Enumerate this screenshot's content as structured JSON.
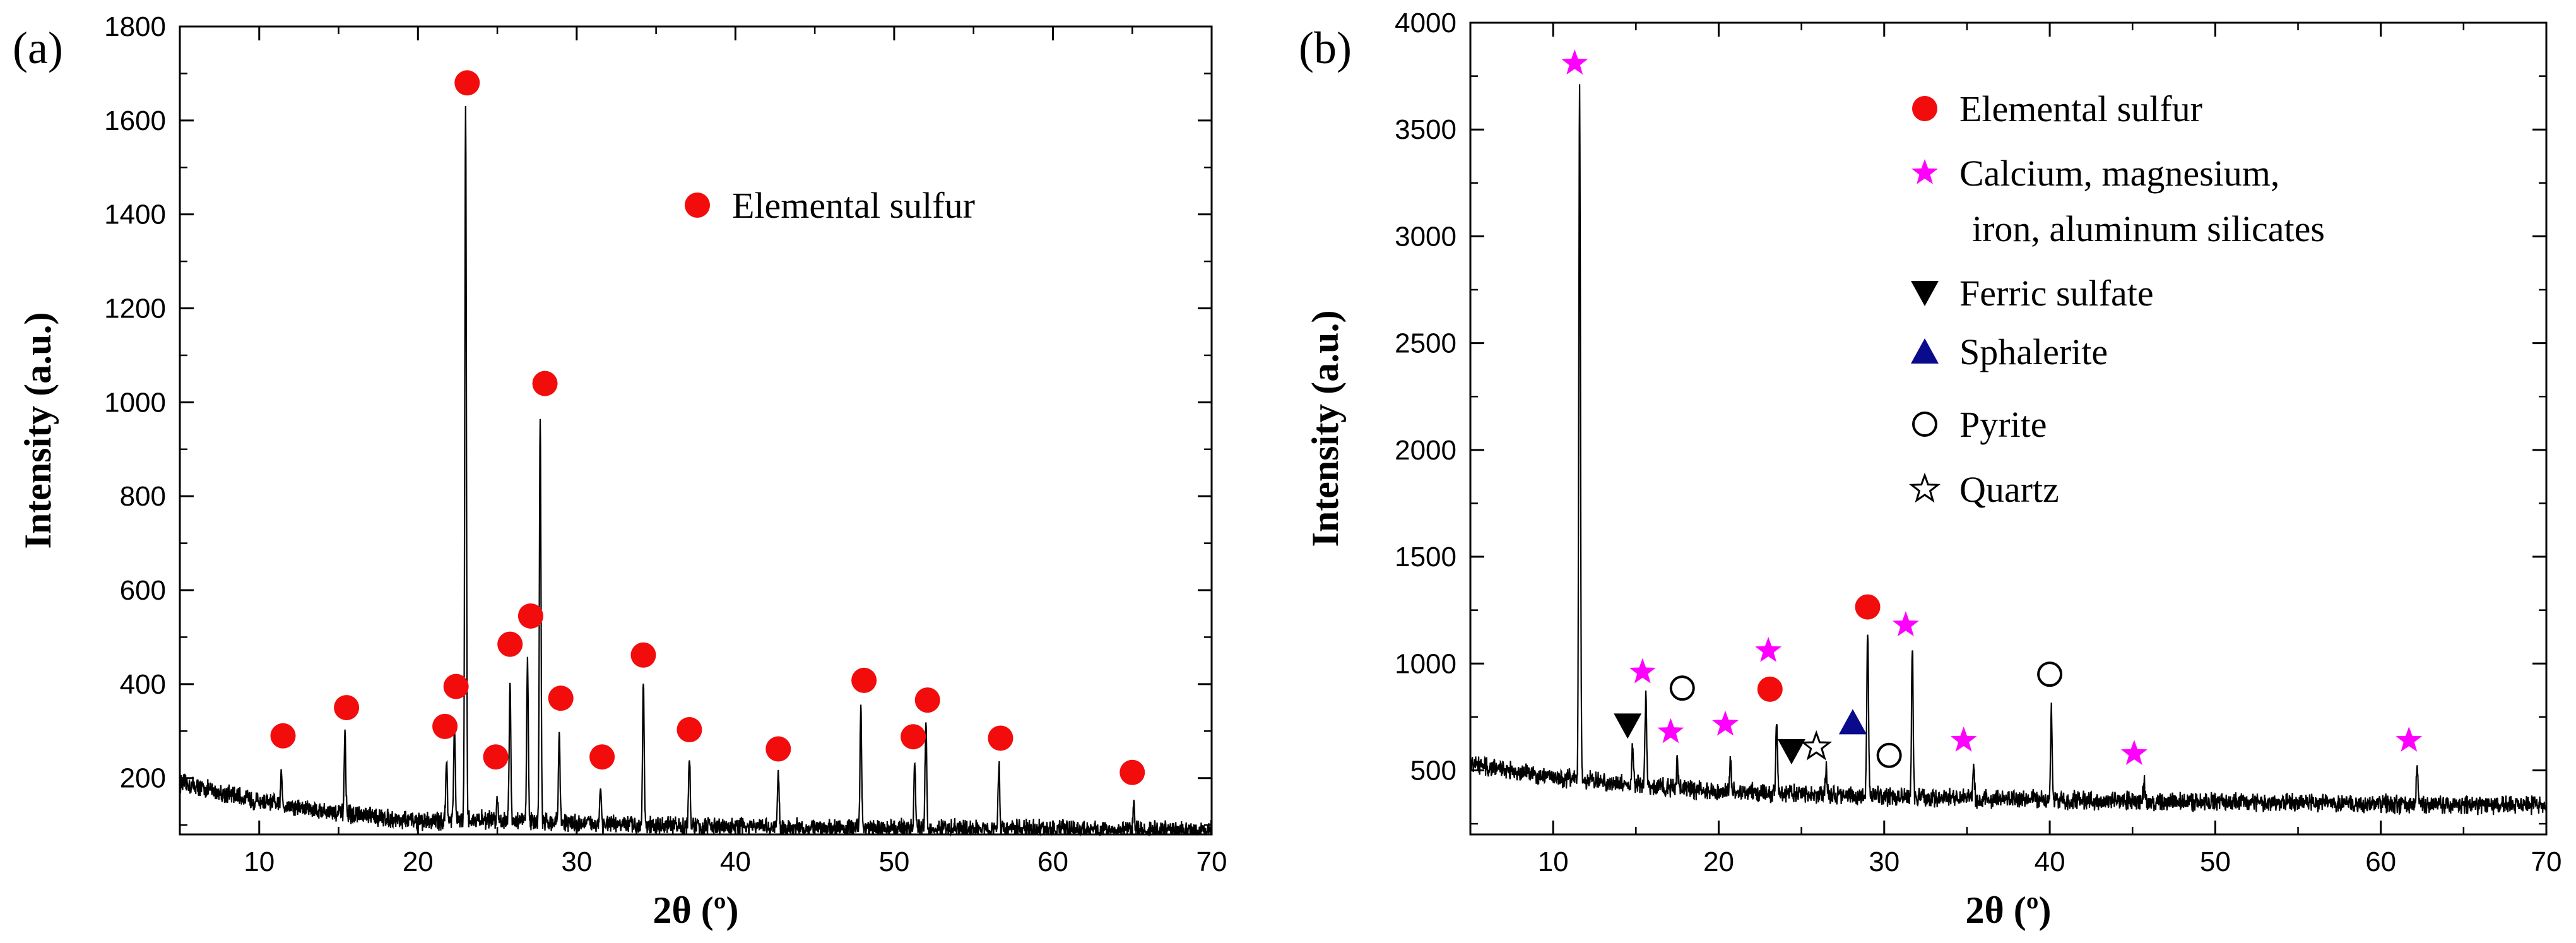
{
  "chart_data": [
    {
      "panel_label": "(a)",
      "type": "line",
      "xlabel": "2θ (º)",
      "ylabel": "Intensity (a.u.)",
      "xlim": [
        5,
        70
      ],
      "ylim": [
        80,
        1800
      ],
      "xticks": [
        10,
        20,
        30,
        40,
        50,
        60,
        70
      ],
      "yticks": [
        200,
        400,
        600,
        800,
        1000,
        1200,
        1400,
        1600,
        1800
      ],
      "baseline": [
        [
          5,
          190
        ],
        [
          10,
          150
        ],
        [
          15,
          125
        ],
        [
          20,
          108
        ],
        [
          25,
          112
        ],
        [
          30,
          104
        ],
        [
          35,
          98
        ],
        [
          40,
          96
        ],
        [
          45,
          94
        ],
        [
          50,
          93
        ],
        [
          55,
          92
        ],
        [
          60,
          91
        ],
        [
          65,
          90
        ],
        [
          70,
          89
        ]
      ],
      "peaks": [
        {
          "x": 11.4,
          "y": 210
        },
        {
          "x": 15.4,
          "y": 290
        },
        {
          "x": 21.8,
          "y": 240
        },
        {
          "x": 22.3,
          "y": 310
        },
        {
          "x": 23.0,
          "y": 1630
        },
        {
          "x": 25.0,
          "y": 150
        },
        {
          "x": 25.8,
          "y": 400
        },
        {
          "x": 26.9,
          "y": 460
        },
        {
          "x": 27.7,
          "y": 980
        },
        {
          "x": 28.9,
          "y": 300
        },
        {
          "x": 31.5,
          "y": 180
        },
        {
          "x": 34.2,
          "y": 420
        },
        {
          "x": 37.1,
          "y": 250
        },
        {
          "x": 42.7,
          "y": 210
        },
        {
          "x": 47.9,
          "y": 360
        },
        {
          "x": 51.3,
          "y": 240
        },
        {
          "x": 52.0,
          "y": 320
        },
        {
          "x": 56.6,
          "y": 230
        },
        {
          "x": 65.1,
          "y": 150
        }
      ],
      "markers": [
        {
          "type": "circle-red",
          "x": 11.5,
          "y": 290
        },
        {
          "type": "circle-red",
          "x": 15.5,
          "y": 350
        },
        {
          "type": "circle-red",
          "x": 21.7,
          "y": 310
        },
        {
          "type": "circle-red",
          "x": 22.4,
          "y": 395
        },
        {
          "type": "circle-red",
          "x": 23.1,
          "y": 1680
        },
        {
          "type": "circle-red",
          "x": 24.9,
          "y": 245
        },
        {
          "type": "circle-red",
          "x": 25.8,
          "y": 485
        },
        {
          "type": "circle-red",
          "x": 27.1,
          "y": 545
        },
        {
          "type": "circle-red",
          "x": 28.0,
          "y": 1040
        },
        {
          "type": "circle-red",
          "x": 29.0,
          "y": 370
        },
        {
          "type": "circle-red",
          "x": 31.6,
          "y": 245
        },
        {
          "type": "circle-red",
          "x": 34.2,
          "y": 462
        },
        {
          "type": "circle-red",
          "x": 37.1,
          "y": 303
        },
        {
          "type": "circle-red",
          "x": 42.7,
          "y": 262
        },
        {
          "type": "circle-red",
          "x": 48.1,
          "y": 408
        },
        {
          "type": "circle-red",
          "x": 51.2,
          "y": 288
        },
        {
          "type": "circle-red",
          "x": 52.1,
          "y": 366
        },
        {
          "type": "circle-red",
          "x": 56.7,
          "y": 285
        },
        {
          "type": "circle-red",
          "x": 65.0,
          "y": 212
        }
      ],
      "legend": [
        {
          "symbol": "circle-red",
          "label": "Elemental sulfur"
        }
      ]
    },
    {
      "panel_label": "(b)",
      "type": "line",
      "xlabel": "2θ (º)",
      "ylabel": "Intensity (a.u.)",
      "xlim": [
        5,
        70
      ],
      "ylim": [
        200,
        4000
      ],
      "xticks": [
        10,
        20,
        30,
        40,
        50,
        60,
        70
      ],
      "yticks": [
        500,
        1000,
        1500,
        2000,
        2500,
        3000,
        3500,
        4000
      ],
      "baseline": [
        [
          5,
          530
        ],
        [
          10,
          470
        ],
        [
          15,
          430
        ],
        [
          20,
          400
        ],
        [
          25,
          390
        ],
        [
          30,
          380
        ],
        [
          35,
          370
        ],
        [
          40,
          362
        ],
        [
          45,
          357
        ],
        [
          50,
          352
        ],
        [
          55,
          347
        ],
        [
          60,
          342
        ],
        [
          65,
          338
        ],
        [
          70,
          335
        ]
      ],
      "peaks": [
        {
          "x": 11.6,
          "y": 3700
        },
        {
          "x": 14.8,
          "y": 600
        },
        {
          "x": 15.6,
          "y": 850
        },
        {
          "x": 17.5,
          "y": 540
        },
        {
          "x": 20.7,
          "y": 560
        },
        {
          "x": 23.5,
          "y": 730
        },
        {
          "x": 26.5,
          "y": 500
        },
        {
          "x": 29.0,
          "y": 1150
        },
        {
          "x": 31.7,
          "y": 1070
        },
        {
          "x": 35.4,
          "y": 520
        },
        {
          "x": 40.1,
          "y": 800
        },
        {
          "x": 45.7,
          "y": 460
        },
        {
          "x": 62.2,
          "y": 510
        }
      ],
      "markers": [
        {
          "type": "star-magenta",
          "x": 11.3,
          "y": 3810
        },
        {
          "type": "star-magenta",
          "x": 15.4,
          "y": 960
        },
        {
          "type": "star-magenta",
          "x": 17.1,
          "y": 680
        },
        {
          "type": "star-magenta",
          "x": 20.4,
          "y": 715
        },
        {
          "type": "star-magenta",
          "x": 23.0,
          "y": 1060
        },
        {
          "type": "star-magenta",
          "x": 31.3,
          "y": 1180
        },
        {
          "type": "star-magenta",
          "x": 34.8,
          "y": 640
        },
        {
          "type": "star-magenta",
          "x": 45.1,
          "y": 578
        },
        {
          "type": "star-magenta",
          "x": 61.7,
          "y": 640
        },
        {
          "type": "circle-red",
          "x": 23.1,
          "y": 880
        },
        {
          "type": "circle-red",
          "x": 29.0,
          "y": 1265
        },
        {
          "type": "triangle-down-black",
          "x": 14.5,
          "y": 710
        },
        {
          "type": "triangle-down-black",
          "x": 24.4,
          "y": 590
        },
        {
          "type": "triangle-up-navy",
          "x": 28.1,
          "y": 725
        },
        {
          "type": "circle-open",
          "x": 17.8,
          "y": 885
        },
        {
          "type": "circle-open",
          "x": 30.3,
          "y": 570
        },
        {
          "type": "circle-open",
          "x": 40.0,
          "y": 950
        },
        {
          "type": "star-open",
          "x": 25.9,
          "y": 610
        }
      ],
      "legend": [
        {
          "symbol": "circle-red",
          "label": "Elemental sulfur"
        },
        {
          "symbol": "star-magenta",
          "label": "Calcium, magnesium,",
          "label2": "iron, aluminum silicates"
        },
        {
          "symbol": "triangle-down-black",
          "label": "Ferric sulfate"
        },
        {
          "symbol": "triangle-up-navy",
          "label": "Sphalerite"
        },
        {
          "symbol": "circle-open",
          "label": "Pyrite"
        },
        {
          "symbol": "star-open",
          "label": "Quartz"
        }
      ]
    }
  ],
  "colors": {
    "line": "#000000",
    "red": "#f20c0c",
    "magenta": "#ff00ff",
    "navy": "#0a0a8c"
  }
}
